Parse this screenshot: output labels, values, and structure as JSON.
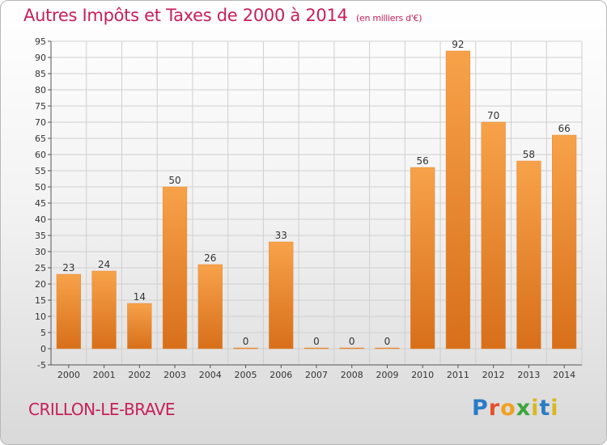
{
  "header": {
    "title": "Autres Impôts et Taxes de 2000 à 2014",
    "unit": "(en milliers d'€)"
  },
  "footer": {
    "commune": "CRILLON-LE-BRAVE",
    "logo": "Proxiti"
  },
  "colors": {
    "title": "#c81e5a",
    "bar_top": "#f7a24a",
    "bar_bottom": "#d86f1a",
    "grid": "#cfcfcf"
  },
  "chart_data": {
    "type": "bar",
    "categories": [
      "2000",
      "2001",
      "2002",
      "2003",
      "2004",
      "2005",
      "2006",
      "2007",
      "2008",
      "2009",
      "2010",
      "2011",
      "2012",
      "2013",
      "2014"
    ],
    "values": [
      23,
      24,
      14,
      50,
      26,
      0,
      33,
      0,
      0,
      0,
      56,
      92,
      70,
      58,
      66
    ],
    "title": "Autres Impôts et Taxes de 2000 à 2014",
    "ylabel": "",
    "xlabel": "",
    "ylim": [
      -5,
      95
    ],
    "ytick_step": 5,
    "grid": true,
    "data_labels": true
  }
}
